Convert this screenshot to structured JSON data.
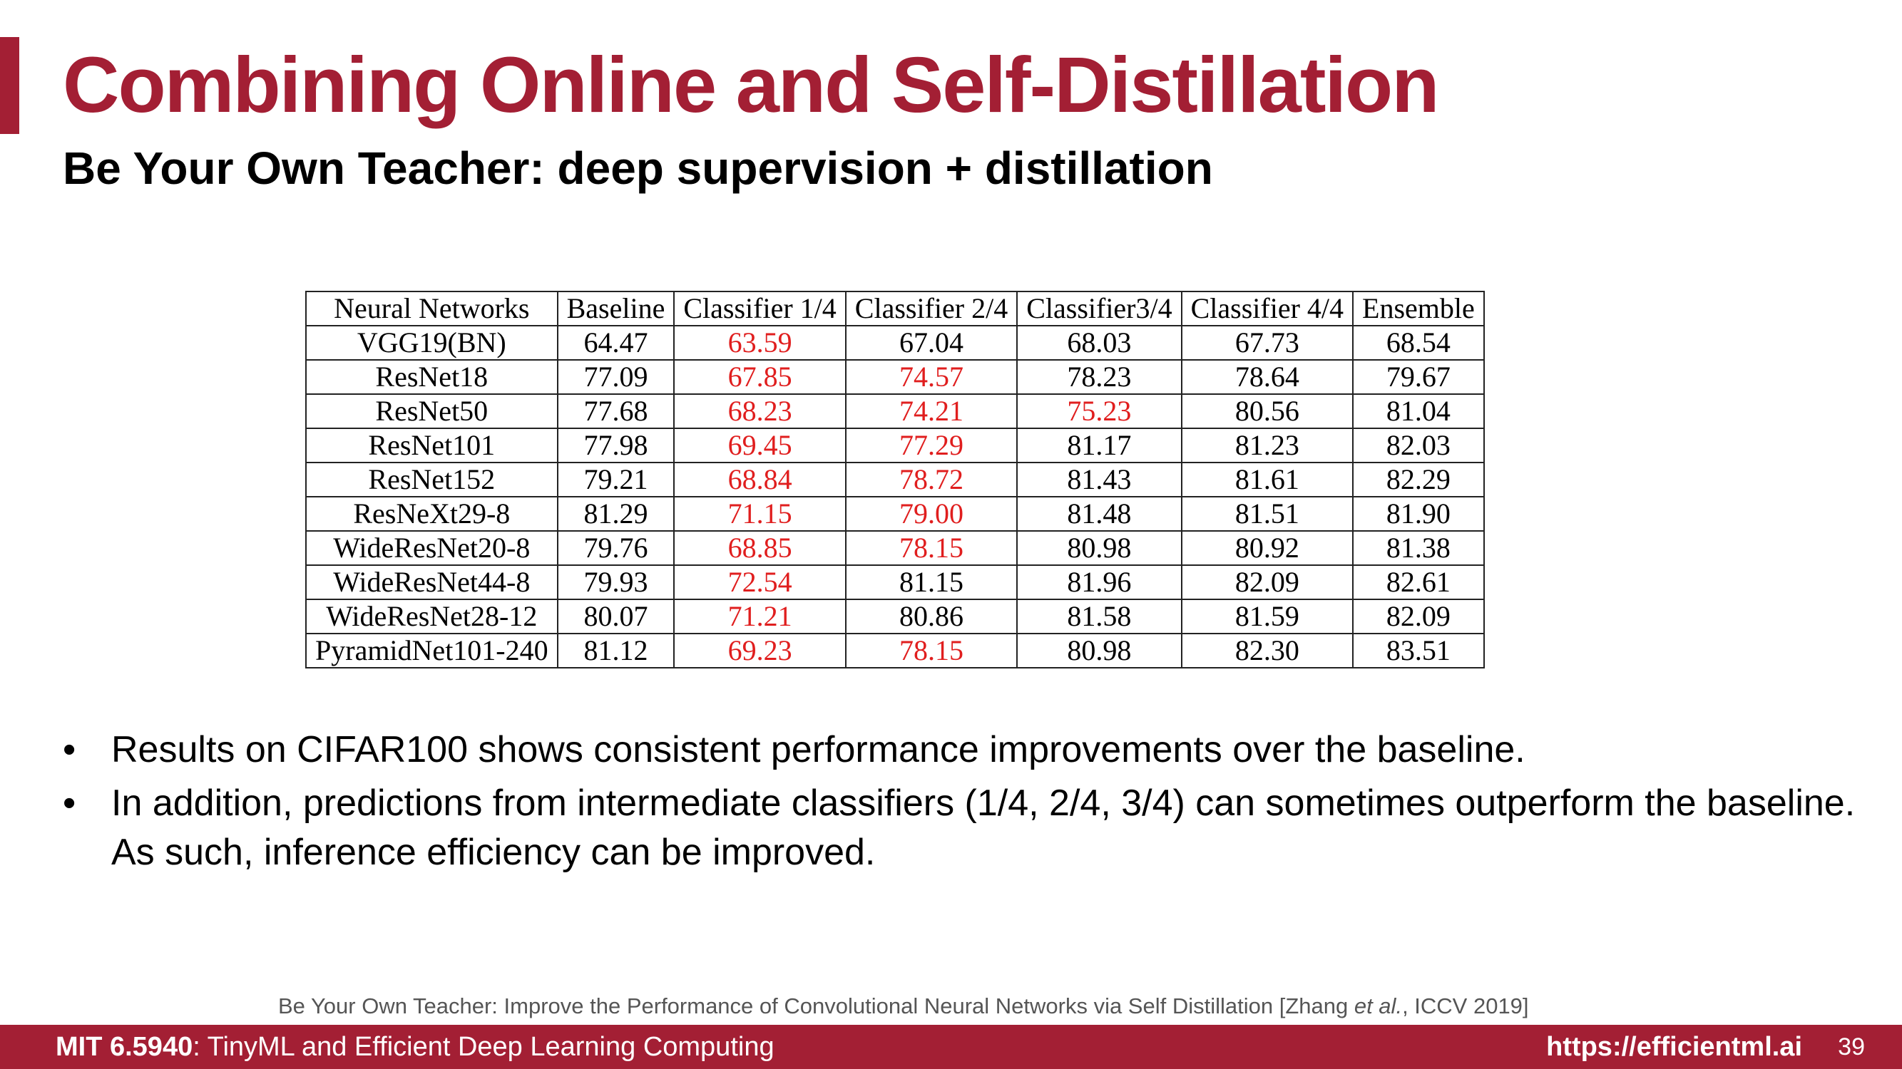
{
  "slide": {
    "title": "Combining Online and Self-Distillation",
    "subtitle": "Be Your Own Teacher: deep supervision + distillation"
  },
  "table": {
    "headers": [
      "Neural Networks",
      "Baseline",
      "Classifier 1/4",
      "Classifier 2/4",
      "Classifier3/4",
      "Classifier 4/4",
      "Ensemble"
    ],
    "rows": [
      [
        "VGG19(BN)",
        "64.47",
        "63.59",
        "67.04",
        "68.03",
        "67.73",
        "68.54"
      ],
      [
        "ResNet18",
        "77.09",
        "67.85",
        "74.57",
        "78.23",
        "78.64",
        "79.67"
      ],
      [
        "ResNet50",
        "77.68",
        "68.23",
        "74.21",
        "75.23",
        "80.56",
        "81.04"
      ],
      [
        "ResNet101",
        "77.98",
        "69.45",
        "77.29",
        "81.17",
        "81.23",
        "82.03"
      ],
      [
        "ResNet152",
        "79.21",
        "68.84",
        "78.72",
        "81.43",
        "81.61",
        "82.29"
      ],
      [
        "ResNeXt29-8",
        "81.29",
        "71.15",
        "79.00",
        "81.48",
        "81.51",
        "81.90"
      ],
      [
        "WideResNet20-8",
        "79.76",
        "68.85",
        "78.15",
        "80.98",
        "80.92",
        "81.38"
      ],
      [
        "WideResNet44-8",
        "79.93",
        "72.54",
        "81.15",
        "81.96",
        "82.09",
        "82.61"
      ],
      [
        "WideResNet28-12",
        "80.07",
        "71.21",
        "80.86",
        "81.58",
        "81.59",
        "82.09"
      ],
      [
        "PyramidNet101-240",
        "81.12",
        "69.23",
        "78.15",
        "80.98",
        "82.30",
        "83.51"
      ]
    ],
    "highlight_color": "#e01e1e"
  },
  "bullets": [
    "Results on CIFAR100 shows consistent performance improvements over the baseline.",
    "In addition, predictions from intermediate classifiers (1/4, 2/4, 3/4) can sometimes outperform the baseline. As such, inference efficiency can be improved."
  ],
  "bullet_symbol": "•",
  "citation": {
    "before": "Be Your Own Teacher: Improve the Performance of Convolutional Neural Networks via Self Distillation [Zhang ",
    "italic": "et al.",
    "after": ", ICCV 2019]"
  },
  "footer": {
    "course_code": "MIT 6.5940",
    "course_title": ": TinyML and Efficient Deep Learning Computing",
    "url": "https://efficientml.ai",
    "page": "39"
  },
  "colors": {
    "brand": "#a31f34",
    "red_value": "#e01e1e"
  }
}
